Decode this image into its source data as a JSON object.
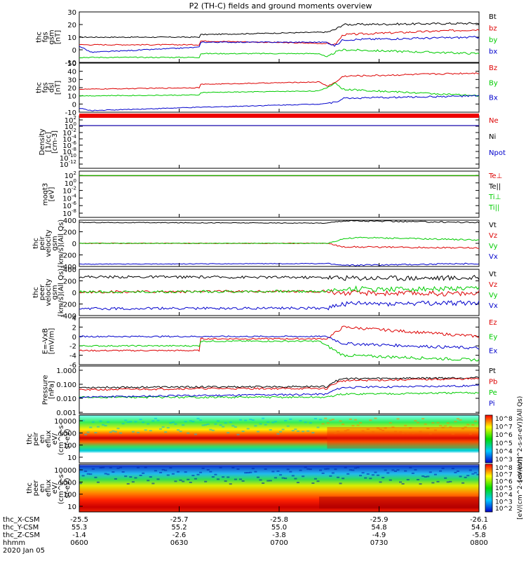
{
  "title": "P2 (TH-C) fields and ground moments overview",
  "colors": {
    "black": "#000000",
    "red": "#dd0000",
    "green": "#00cc00",
    "blue": "#0000cc",
    "axis": "#000000"
  },
  "chart_data": [
    {
      "type": "line",
      "id": "fgs_gsm",
      "ylabel": [
        "thc",
        "fgs",
        "gsm",
        "[nT]"
      ],
      "ylim": [
        -10,
        30
      ],
      "yticks": [
        "30",
        "20",
        "10",
        "0",
        "-10"
      ],
      "ytick_values": [
        30,
        20,
        10,
        0,
        -10
      ],
      "series": [
        {
          "name": "Bt",
          "color": "black",
          "x": [
            0,
            0.3,
            0.3,
            0.62,
            0.64,
            0.66,
            1
          ],
          "y": [
            10,
            10,
            12,
            14,
            16,
            20,
            21
          ]
        },
        {
          "name": "bz",
          "color": "red",
          "x": [
            0,
            0.3,
            0.3,
            0.62,
            0.64,
            0.66,
            1
          ],
          "y": [
            4,
            4,
            7,
            5,
            4,
            12,
            16
          ]
        },
        {
          "name": "by",
          "color": "green",
          "x": [
            0,
            0.3,
            0.3,
            0.6,
            0.62,
            0.64,
            0.66,
            1
          ],
          "y": [
            -6,
            -6,
            -3,
            -3,
            -6,
            -2,
            0,
            -3
          ]
        },
        {
          "name": "bx",
          "color": "blue",
          "x": [
            0,
            0.03,
            0.3,
            0.3,
            0.62,
            0.64,
            0.66,
            1
          ],
          "y": [
            3,
            -2,
            2,
            6,
            6,
            3,
            8,
            10
          ]
        }
      ]
    },
    {
      "type": "line",
      "id": "fgs_dsl",
      "ylabel": [
        "thc",
        "fgs",
        "dsl",
        "[nT]"
      ],
      "ylim": [
        -10,
        50
      ],
      "yticks": [
        "50",
        "40",
        "30",
        "20",
        "10",
        "0",
        "-10"
      ],
      "ytick_values": [
        50,
        40,
        30,
        20,
        10,
        0,
        -10
      ],
      "series": [
        {
          "name": "Bz",
          "color": "red",
          "x": [
            0,
            0.3,
            0.3,
            0.6,
            0.62,
            0.64,
            0.66,
            1
          ],
          "y": [
            18,
            20,
            24,
            27,
            22,
            26,
            34,
            38
          ]
        },
        {
          "name": "By",
          "color": "green",
          "x": [
            0,
            0.3,
            0.3,
            0.6,
            0.62,
            0.64,
            0.66,
            1
          ],
          "y": [
            10,
            11,
            14,
            16,
            20,
            26,
            18,
            10
          ]
        },
        {
          "name": "Bx",
          "color": "blue",
          "x": [
            0,
            0.03,
            0.3,
            0.6,
            0.64,
            0.66,
            1
          ],
          "y": [
            -5,
            -8,
            -4,
            0,
            2,
            7,
            10
          ]
        }
      ]
    },
    {
      "type": "line",
      "id": "density",
      "ylabel": [
        "Density",
        "[1/cc]",
        "[cm-3]"
      ],
      "yticks": [
        "10^2",
        "10^0",
        "10^-2",
        "10^-4",
        "10^-6",
        "10^-8",
        "10^-10",
        "10^-12"
      ],
      "series": [
        {
          "name": "Ne",
          "color": "red",
          "x": [
            0,
            1
          ],
          "y": [
            0.9,
            0.9
          ]
        },
        {
          "name": "Ni",
          "color": "black",
          "x": [
            0,
            1
          ],
          "y": [
            0.9,
            0.9
          ]
        },
        {
          "name": "Npot",
          "color": "blue",
          "x": [
            0,
            1
          ],
          "y": [
            1,
            1
          ]
        }
      ]
    },
    {
      "type": "line",
      "id": "temperature",
      "ylabel": [
        "moqt3",
        "[eV]"
      ],
      "yticks": [
        "10^2",
        "10^0",
        "10^-2",
        "10^-4",
        "10^-6",
        "10^-8"
      ],
      "series": [
        {
          "name": "Te⊥",
          "color": "red",
          "x": [
            0,
            1
          ],
          "y": [
            300,
            300
          ]
        },
        {
          "name": "Te||",
          "color": "black",
          "x": [
            0,
            1
          ],
          "y": [
            300,
            300
          ]
        },
        {
          "name": "Ti⊥",
          "color": "orange",
          "x": [
            0,
            1
          ],
          "y": [
            400,
            400
          ]
        },
        {
          "name": "Ti||",
          "color": "green",
          "x": [
            0,
            1
          ],
          "y": [
            400,
            400
          ]
        }
      ]
    },
    {
      "type": "line",
      "id": "peir_velocity",
      "ylabel": [
        "thc",
        "peir",
        "velocity",
        "gsm",
        "[km/s](All Qs)"
      ],
      "ylim": [
        -400,
        400
      ],
      "yticks": [
        "400",
        "200",
        "0",
        "-200",
        "-400"
      ],
      "ytick_values": [
        400,
        200,
        0,
        -200,
        -400
      ],
      "series": [
        {
          "name": "Vt",
          "color": "black",
          "x": [
            0,
            0.62,
            0.66,
            1
          ],
          "y": [
            360,
            350,
            390,
            360
          ]
        },
        {
          "name": "Vz",
          "color": "red",
          "x": [
            0,
            0.62,
            0.66,
            1
          ],
          "y": [
            0,
            0,
            -60,
            -80
          ]
        },
        {
          "name": "Vy",
          "color": "green",
          "x": [
            0,
            0.62,
            0.66,
            0.7,
            1
          ],
          "y": [
            0,
            0,
            80,
            100,
            60
          ]
        },
        {
          "name": "Vx",
          "color": "blue",
          "x": [
            0,
            0.62,
            0.66,
            1
          ],
          "y": [
            -360,
            -350,
            -380,
            -350
          ]
        }
      ]
    },
    {
      "type": "line",
      "id": "peer_velocity",
      "ylabel": [
        "thc",
        "peer",
        "velocity",
        "gsm",
        "[km/s](All Qs)"
      ],
      "ylim": [
        -400,
        400
      ],
      "yticks": [
        "400",
        "200",
        "0",
        "-200",
        "-400"
      ],
      "ytick_values": [
        400,
        200,
        0,
        -200,
        -400
      ],
      "series": [
        {
          "name": "Vt",
          "color": "black",
          "x": [
            0,
            0.62,
            0.66,
            1
          ],
          "y": [
            270,
            260,
            250,
            250
          ]
        },
        {
          "name": "Vz",
          "color": "red",
          "x": [
            0,
            0.62,
            0.66,
            1
          ],
          "y": [
            10,
            20,
            -10,
            -20
          ]
        },
        {
          "name": "Vy",
          "color": "green",
          "x": [
            0,
            0.62,
            0.66,
            1
          ],
          "y": [
            10,
            20,
            60,
            60
          ]
        },
        {
          "name": "Vx",
          "color": "blue",
          "x": [
            0,
            0.62,
            0.66,
            1
          ],
          "y": [
            -280,
            -270,
            -200,
            -180
          ]
        }
      ]
    },
    {
      "type": "line",
      "id": "efield",
      "ylabel": [
        "E=-VxB",
        "[mV/m]"
      ],
      "ylim": [
        -6,
        4
      ],
      "yticks": [
        "4",
        "2",
        "0",
        "-2",
        "-4",
        "-6"
      ],
      "ytick_values": [
        4,
        2,
        0,
        -2,
        -4,
        -6
      ],
      "series": [
        {
          "name": "Ez",
          "color": "red",
          "x": [
            0,
            0.3,
            0.3,
            0.62,
            0.66,
            1
          ],
          "y": [
            -3,
            -3,
            -0.5,
            -0.5,
            2,
            0
          ]
        },
        {
          "name": "Ey",
          "color": "green",
          "x": [
            0,
            0.3,
            0.3,
            0.6,
            0.64,
            0.66,
            1
          ],
          "y": [
            -2,
            -2,
            -1,
            -1,
            -3,
            -4,
            -5
          ]
        },
        {
          "name": "Ex",
          "color": "blue",
          "x": [
            0,
            0.62,
            0.66,
            1
          ],
          "y": [
            0,
            0,
            -1.5,
            -2.5
          ]
        }
      ]
    },
    {
      "type": "line",
      "id": "pressure",
      "ylabel": [
        "Pressure",
        "[nPa]"
      ],
      "yticks": [
        "1.000",
        "0.100",
        "0.010",
        "0.001"
      ],
      "ytick_values": [
        1,
        0.1,
        0.01,
        0.001
      ],
      "series": [
        {
          "name": "Pt",
          "color": "black",
          "x": [
            0,
            0.62,
            0.66,
            1
          ],
          "y": [
            0.06,
            0.07,
            0.25,
            0.3
          ]
        },
        {
          "name": "Pb",
          "color": "red",
          "x": [
            0,
            0.3,
            0.62,
            0.66,
            1
          ],
          "y": [
            0.04,
            0.05,
            0.05,
            0.18,
            0.25
          ]
        },
        {
          "name": "Pe",
          "color": "green",
          "x": [
            0,
            0.62,
            0.66,
            1
          ],
          "y": [
            0.012,
            0.012,
            0.02,
            0.025
          ]
        },
        {
          "name": "Pi",
          "color": "blue",
          "x": [
            0,
            0.62,
            0.66,
            1
          ],
          "y": [
            0.012,
            0.02,
            0.06,
            0.08
          ]
        }
      ]
    },
    {
      "type": "heatmap",
      "id": "peir_eflux",
      "ylabel": [
        "thc",
        "peir",
        "en",
        "eflux",
        "eV/",
        "(cm^2-s-",
        "sr-eV)"
      ],
      "yticks": [
        "10000",
        "1000",
        "100",
        "10"
      ],
      "cbar_ticks": [
        "10^8",
        "10^7",
        "10^6",
        "10^5",
        "10^4",
        "10^3"
      ],
      "cbar_label": "[eV/(cm^2-s-sr-eV)](All Qs)"
    },
    {
      "type": "heatmap",
      "id": "peer_eflux",
      "ylabel": [
        "thc",
        "peer",
        "en",
        "eflux",
        "eV/",
        "(cm^2-s-",
        "sr-eV)"
      ],
      "yticks": [
        "10000",
        "1000",
        "100",
        "10"
      ],
      "cbar_ticks": [
        "10^8",
        "10^7",
        "10^6",
        "10^5",
        "10^4",
        "10^3",
        "10^2"
      ],
      "cbar_label": "[eV/(cm^2-s-sr-eV)]"
    }
  ],
  "xaxis": {
    "rows": [
      {
        "label": "thc_X-CSM",
        "values": [
          "-25.5",
          "-25.7",
          "-25.8",
          "-25.9",
          "-26.1"
        ]
      },
      {
        "label": "thc_Y-CSM",
        "values": [
          "55.3",
          "55.2",
          "55.0",
          "54.8",
          "54.6"
        ]
      },
      {
        "label": "thc_Z-CSM",
        "values": [
          "-1.4",
          "-2.6",
          "-3.8",
          "-4.9",
          "-5.8"
        ]
      },
      {
        "label": "hhmm",
        "values": [
          "0600",
          "0630",
          "0700",
          "0730",
          "0800"
        ]
      }
    ],
    "date": "2020 Jan 05"
  }
}
